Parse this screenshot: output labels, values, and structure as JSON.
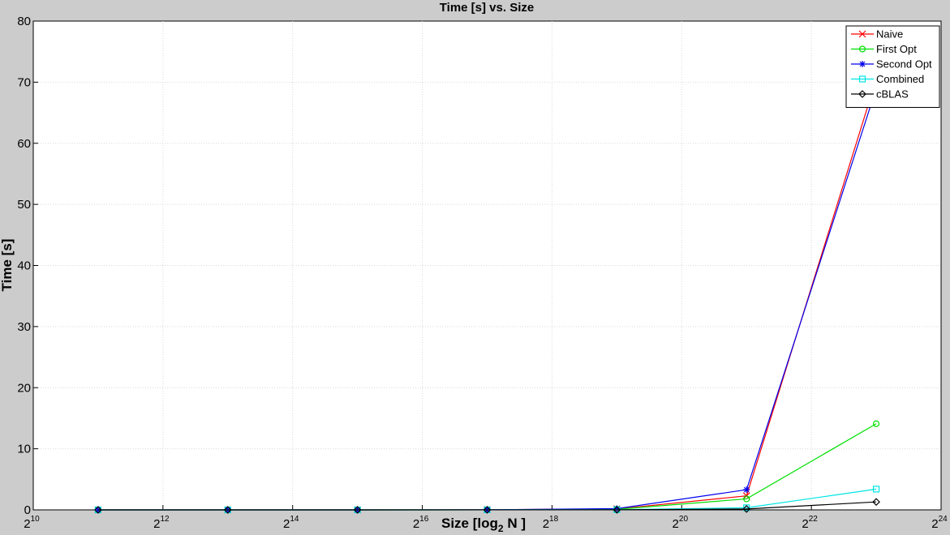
{
  "chart_data": {
    "type": "line",
    "title": "Time [s] vs. Size",
    "xlabel_main": "Size [log",
    "xlabel_sub": "2",
    "xlabel_tail": " N ]",
    "ylabel": "Time [s]",
    "x_scale": "log2",
    "xlim": [
      1024,
      16777216
    ],
    "ylim": [
      0,
      80
    ],
    "xticks": [
      {
        "base": "2",
        "exp": "10",
        "value": 1024
      },
      {
        "base": "2",
        "exp": "12",
        "value": 4096
      },
      {
        "base": "2",
        "exp": "14",
        "value": 16384
      },
      {
        "base": "2",
        "exp": "16",
        "value": 65536
      },
      {
        "base": "2",
        "exp": "18",
        "value": 262144
      },
      {
        "base": "2",
        "exp": "20",
        "value": 1048576
      },
      {
        "base": "2",
        "exp": "22",
        "value": 4194304
      },
      {
        "base": "2",
        "exp": "24",
        "value": 16777216
      }
    ],
    "yticks": [
      "0",
      "10",
      "20",
      "30",
      "40",
      "50",
      "60",
      "70",
      "80"
    ],
    "ytick_values": [
      0,
      10,
      20,
      30,
      40,
      50,
      60,
      70,
      80
    ],
    "grid": true,
    "legend_position": "top-right",
    "x": [
      2048,
      8192,
      32768,
      131072,
      524288,
      2097152,
      8388608
    ],
    "series": [
      {
        "name": "Naive",
        "color": "#ff0000",
        "marker": "x",
        "values": [
          0.0,
          0.0,
          0.0,
          0.02,
          0.15,
          2.3,
          70.5
        ]
      },
      {
        "name": "First Opt",
        "color": "#00e000",
        "marker": "circle",
        "values": [
          0.0,
          0.0,
          0.0,
          0.01,
          0.1,
          1.8,
          14.1
        ]
      },
      {
        "name": "Second Opt",
        "color": "#0000ee",
        "marker": "star",
        "values": [
          0.0,
          0.0,
          0.0,
          0.02,
          0.2,
          3.3,
          69.0
        ]
      },
      {
        "name": "Combined",
        "color": "#00e5e5",
        "marker": "square",
        "values": [
          0.0,
          0.0,
          0.0,
          0.01,
          0.03,
          0.35,
          3.4
        ]
      },
      {
        "name": "cBLAS",
        "color": "#000000",
        "marker": "diamond",
        "values": [
          0.0,
          0.0,
          0.0,
          0.005,
          0.02,
          0.15,
          1.3
        ]
      }
    ]
  }
}
